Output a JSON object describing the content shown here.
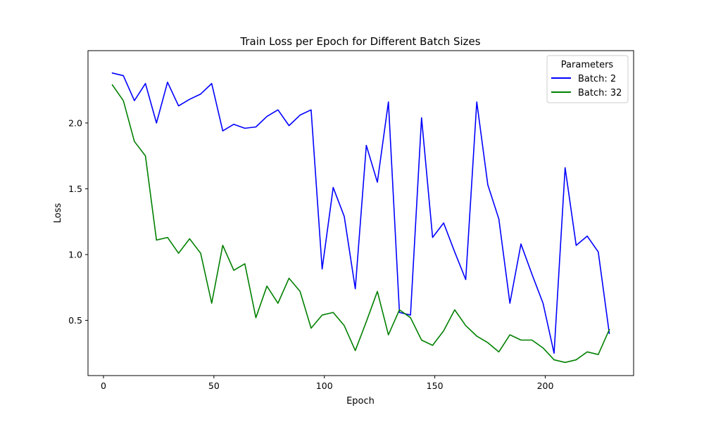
{
  "chart_data": {
    "type": "line",
    "title": "Train Loss per Epoch for Different Batch Sizes",
    "xlabel": "Epoch",
    "ylabel": "Loss",
    "xlim": [
      -7,
      240
    ],
    "ylim": [
      0.08,
      2.55
    ],
    "xticks": [
      0,
      50,
      100,
      150,
      200
    ],
    "yticks": [
      0.5,
      1.0,
      1.5,
      2.0
    ],
    "ytick_labels": [
      "0.5",
      "1.0",
      "1.5",
      "2.0"
    ],
    "grid": false,
    "legend": {
      "title": "Parameters",
      "placement": "top-right"
    },
    "x": [
      4,
      9,
      14,
      19,
      24,
      29,
      34,
      39,
      44,
      49,
      54,
      59,
      64,
      69,
      74,
      79,
      84,
      89,
      94,
      99,
      104,
      109,
      114,
      119,
      124,
      129,
      134,
      139,
      144,
      149,
      154,
      159,
      164,
      169,
      174,
      179,
      184,
      189,
      194,
      199,
      204,
      209,
      214,
      219,
      224,
      229
    ],
    "series": [
      {
        "name": "Batch: 2",
        "color": "#0000ff",
        "values": [
          2.38,
          2.36,
          2.17,
          2.3,
          2.0,
          2.31,
          2.13,
          2.18,
          2.22,
          2.3,
          1.94,
          1.99,
          1.96,
          1.97,
          2.05,
          2.1,
          1.98,
          2.06,
          2.1,
          0.89,
          1.51,
          1.29,
          0.74,
          1.83,
          1.55,
          2.16,
          0.56,
          0.54,
          2.04,
          1.13,
          1.24,
          1.02,
          0.81,
          2.16,
          1.53,
          1.27,
          0.63,
          1.08,
          0.85,
          0.63,
          0.25,
          1.66,
          1.07,
          1.14,
          1.02,
          0.4
        ]
      },
      {
        "name": "Batch: 32",
        "color": "#008000",
        "values": [
          2.29,
          2.17,
          1.86,
          1.75,
          1.11,
          1.13,
          1.01,
          1.12,
          1.01,
          0.63,
          1.07,
          0.88,
          0.93,
          0.52,
          0.76,
          0.63,
          0.82,
          0.72,
          0.44,
          0.54,
          0.56,
          0.46,
          0.27,
          0.49,
          0.72,
          0.39,
          0.58,
          0.52,
          0.35,
          0.31,
          0.42,
          0.58,
          0.46,
          0.38,
          0.33,
          0.26,
          0.39,
          0.35,
          0.35,
          0.29,
          0.2,
          0.18,
          0.2,
          0.26,
          0.24,
          0.43
        ]
      }
    ]
  }
}
